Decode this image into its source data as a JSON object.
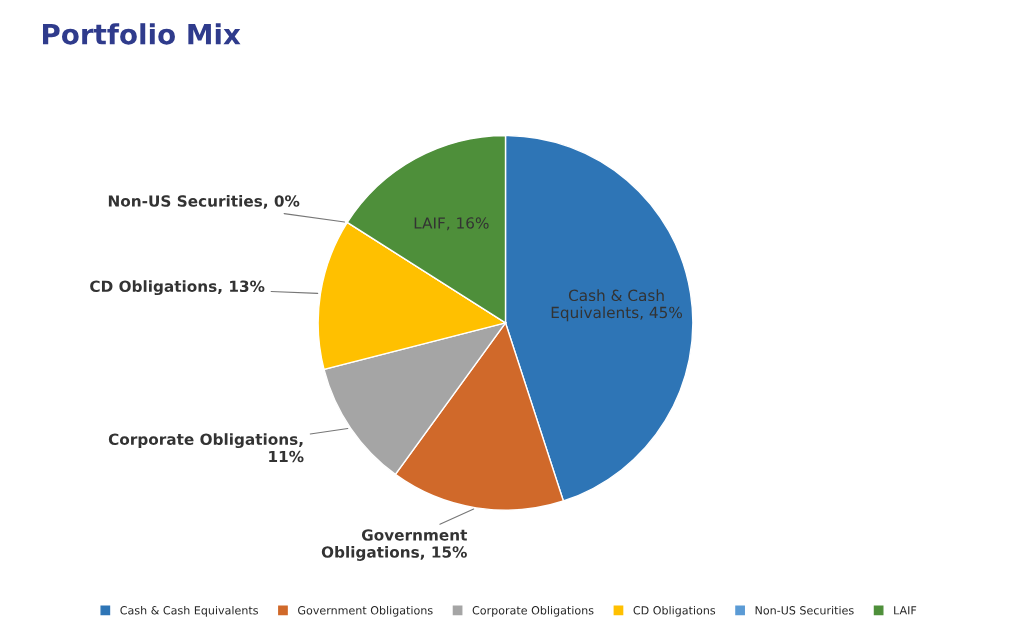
{
  "chart_data": {
    "type": "pie",
    "title": "Portfolio Mix",
    "categories": [
      "Cash & Cash Equivalents",
      "Government Obligations",
      "Corporate Obligations",
      "CD Obligations",
      "Non-US Securities",
      "LAIF"
    ],
    "values": [
      45,
      15,
      11,
      13,
      0,
      16
    ],
    "colors": [
      "#2e75b6",
      "#d0692a",
      "#a5a5a5",
      "#ffc000",
      "#5b9bd5",
      "#4e8f3a"
    ],
    "value_labels": [
      "Cash & Cash\nEquivalents, 45%",
      "Government\nObligations, 15%",
      "Corporate Obligations,\n11%",
      "CD Obligations, 13%",
      "Non-US Securities, 0%",
      "LAIF, 16%"
    ],
    "legend": "bottom"
  }
}
